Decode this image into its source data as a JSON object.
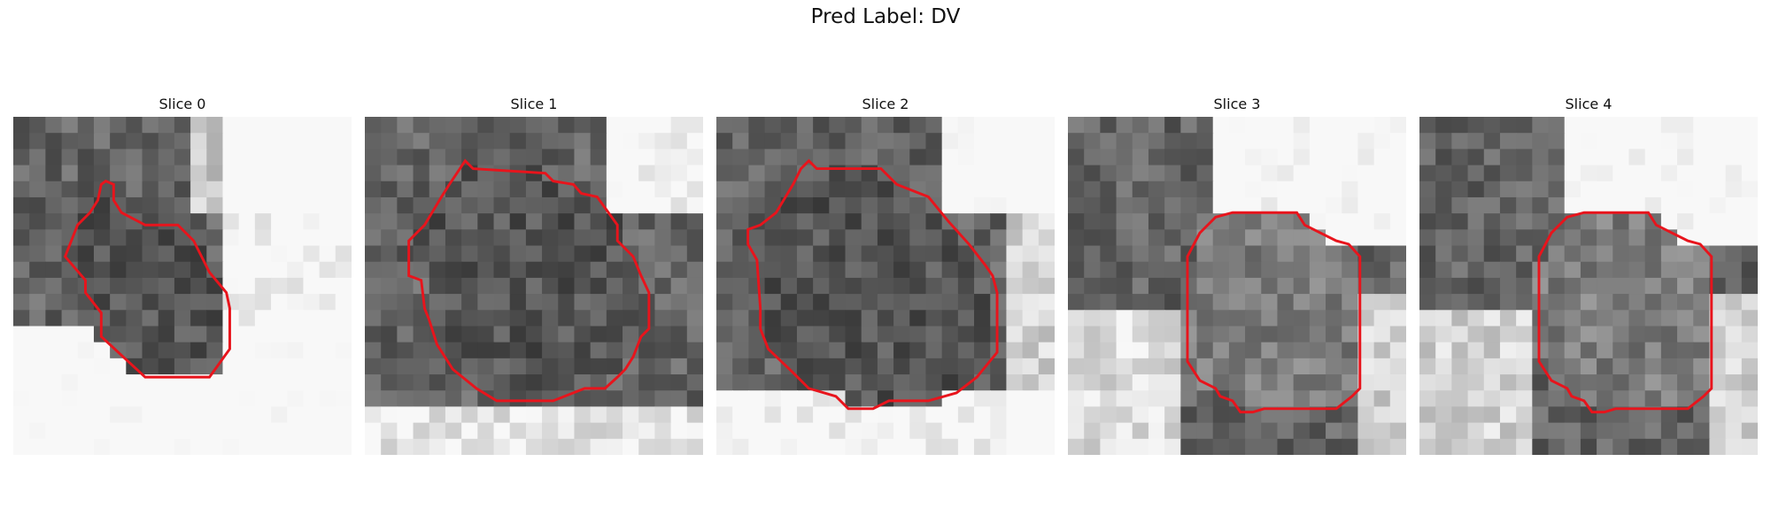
{
  "figure": {
    "title": "Pred Label: DV"
  },
  "slices": [
    {
      "label": "Slice 0"
    },
    {
      "label": "Slice 1"
    },
    {
      "label": "Slice 2"
    },
    {
      "label": "Slice 3"
    },
    {
      "label": "Slice 4"
    }
  ],
  "style": {
    "contour_color": "#e8141c"
  },
  "icons": [
    "grayscale-slice-image",
    "segmentation-contour"
  ]
}
